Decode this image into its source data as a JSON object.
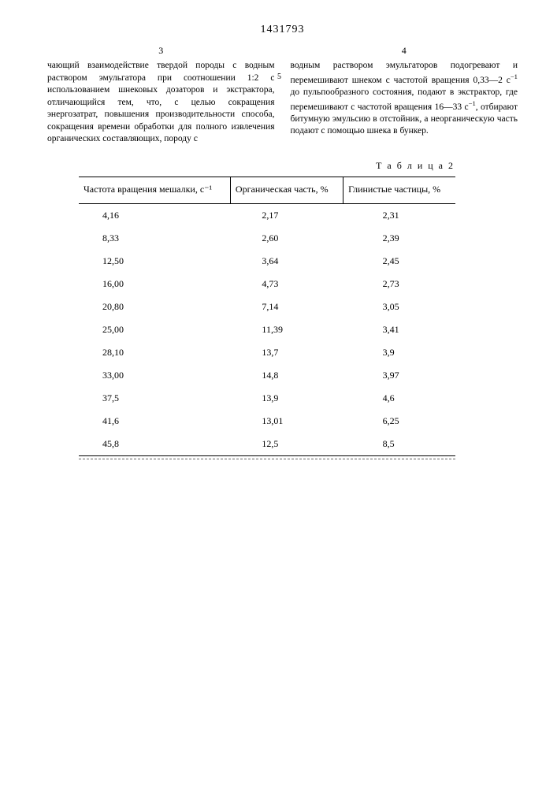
{
  "doc_number": "1431793",
  "col_left_num": "3",
  "col_right_num": "4",
  "line_marker": "5",
  "left_text": "чающий взаимодействие твердой породы с водным раствором эмульгатора при соотношении 1:2 с использованием шнековых дозаторов и экстрактора, отличающийся тем, что, с целью сокращения энергозатрат, повышения производительности способа, сокращения времени обработки для полного извлечения органических составляющих, породу с",
  "right_text_1": "водным раствором эмульгаторов подогревают и перемешивают шнеком с частотой вращения 0,33—2 с",
  "right_text_2": " до пульпообразного состояния, подают в экстрактор, где перемешивают с частотой вращения 16—33 с",
  "right_text_3": ", отбирают битумную эмульсию в отстойник, а неорганическую часть подают с помощью шнека в бункер.",
  "sup_minus1": "−1",
  "table": {
    "caption": "Т а б л и ц а  2",
    "columns": [
      "Частота вращения мешалки, с⁻¹",
      "Органическая часть, %",
      "Глинистые частицы, %"
    ],
    "rows": [
      [
        "4,16",
        "2,17",
        "2,31"
      ],
      [
        "8,33",
        "2,60",
        "2,39"
      ],
      [
        "12,50",
        "3,64",
        "2,45"
      ],
      [
        "16,00",
        "4,73",
        "2,73"
      ],
      [
        "20,80",
        "7,14",
        "3,05"
      ],
      [
        "25,00",
        "11,39",
        "3,41"
      ],
      [
        "28,10",
        "13,7",
        "3,9"
      ],
      [
        "33,00",
        "14,8",
        "3,97"
      ],
      [
        "37,5",
        "13,9",
        "4,6"
      ],
      [
        "41,6",
        "13,01",
        "6,25"
      ],
      [
        "45,8",
        "12,5",
        "8,5"
      ]
    ]
  }
}
